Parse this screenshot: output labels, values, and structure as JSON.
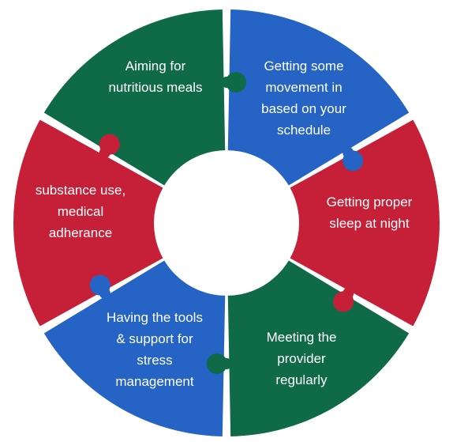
{
  "colors": {
    "green": "#0f6a47",
    "blue": "#2563c4",
    "red": "#c52037",
    "background": "#ffffff"
  },
  "segments": [
    {
      "label": "Aiming for\nnutritious meals",
      "color": "green"
    },
    {
      "label": "Getting some\nmovement in\nbased on your\nschedule",
      "color": "blue"
    },
    {
      "label": "Getting proper\nsleep at night",
      "color": "red"
    },
    {
      "label": "Meeting the\nprovider\nregularly",
      "color": "green"
    },
    {
      "label": "Having the tools\n& support for\nstress\nmanagement",
      "color": "blue"
    },
    {
      "label": "substance use,\nmedical\nadherance",
      "color": "red"
    }
  ]
}
